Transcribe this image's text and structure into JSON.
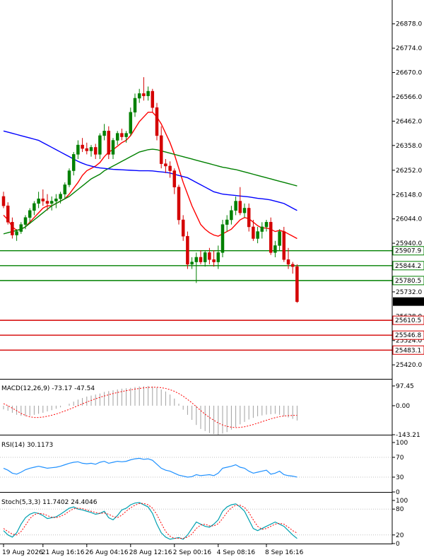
{
  "chart_data": {
    "type": "candlestick",
    "price_axis": {
      "ticks": [
        "26878.0",
        "26774.0",
        "26670.0",
        "26566.0",
        "26462.0",
        "26358.0",
        "26252.0",
        "26148.0",
        "26044.0",
        "25940.0",
        "25836.0",
        "25732.0",
        "25628.0",
        "25524.0",
        "25420.0"
      ],
      "min": 25360,
      "max": 26980
    },
    "level_lines": {
      "green": [
        {
          "label": "25907.9",
          "value": 25907.9
        },
        {
          "label": "25844.2",
          "value": 25844.2
        },
        {
          "label": "25780.5",
          "value": 25780.5
        }
      ],
      "red": [
        {
          "label": "25610.5",
          "value": 25610.5
        },
        {
          "label": "25546.8",
          "value": 25546.8
        },
        {
          "label": "25483.1",
          "value": 25483.1
        }
      ],
      "colors": {
        "green": "#008000",
        "red": "#d40000"
      }
    },
    "current_price": {
      "label": "25690.5",
      "value": 25690.5
    },
    "candles": [
      [
        26140,
        26160,
        26090,
        26100
      ],
      [
        26100,
        26115,
        26020,
        26030
      ],
      [
        26030,
        26050,
        25960,
        25975
      ],
      [
        25975,
        26000,
        25950,
        25990
      ],
      [
        25990,
        26030,
        25980,
        26020
      ],
      [
        26020,
        26060,
        26000,
        26050
      ],
      [
        26050,
        26090,
        26030,
        26080
      ],
      [
        26080,
        26120,
        26060,
        26110
      ],
      [
        26110,
        26160,
        26090,
        26130
      ],
      [
        26130,
        26170,
        26100,
        26120
      ],
      [
        26120,
        26150,
        26080,
        26110
      ],
      [
        26110,
        26140,
        26080,
        26120
      ],
      [
        26120,
        26150,
        26090,
        26130
      ],
      [
        26130,
        26160,
        26110,
        26150
      ],
      [
        26150,
        26200,
        26130,
        26190
      ],
      [
        26190,
        26260,
        26180,
        26250
      ],
      [
        26250,
        26330,
        26230,
        26320
      ],
      [
        26320,
        26380,
        26300,
        26360
      ],
      [
        26360,
        26390,
        26330,
        26345
      ],
      [
        26345,
        26370,
        26320,
        26335
      ],
      [
        26335,
        26360,
        26310,
        26350
      ],
      [
        26350,
        26365,
        26300,
        26320
      ],
      [
        26320,
        26410,
        26300,
        26400
      ],
      [
        26400,
        26450,
        26380,
        26420
      ],
      [
        26420,
        26440,
        26300,
        26320
      ],
      [
        26320,
        26390,
        26300,
        26380
      ],
      [
        26380,
        26420,
        26360,
        26410
      ],
      [
        26410,
        26430,
        26380,
        26395
      ],
      [
        26395,
        26420,
        26370,
        26410
      ],
      [
        26410,
        26520,
        26400,
        26500
      ],
      [
        26500,
        26580,
        26480,
        26560
      ],
      [
        26560,
        26600,
        26540,
        26580
      ],
      [
        26580,
        26650,
        26550,
        26570
      ],
      [
        26570,
        26610,
        26550,
        26590
      ],
      [
        26590,
        26600,
        26500,
        26520
      ],
      [
        26520,
        26540,
        26380,
        26400
      ],
      [
        26400,
        26440,
        26260,
        26280
      ],
      [
        26280,
        26300,
        26240,
        26270
      ],
      [
        26270,
        26290,
        26220,
        26250
      ],
      [
        26250,
        26260,
        26150,
        26180
      ],
      [
        26180,
        26190,
        26020,
        26040
      ],
      [
        26040,
        26060,
        25950,
        25970
      ],
      [
        25970,
        25990,
        25830,
        25850
      ],
      [
        25850,
        25880,
        25830,
        25860
      ],
      [
        25860,
        25900,
        25770,
        25880
      ],
      [
        25880,
        25910,
        25850,
        25860
      ],
      [
        25860,
        25910,
        25840,
        25900
      ],
      [
        25900,
        25920,
        25850,
        25870
      ],
      [
        25870,
        25910,
        25840,
        25860
      ],
      [
        25860,
        25930,
        25830,
        25900
      ],
      [
        25900,
        26040,
        25880,
        26020
      ],
      [
        26020,
        26060,
        25990,
        26040
      ],
      [
        26040,
        26100,
        26020,
        26080
      ],
      [
        26080,
        26140,
        26060,
        26120
      ],
      [
        26120,
        26180,
        26060,
        26070
      ],
      [
        26070,
        26110,
        26050,
        26090
      ],
      [
        26090,
        26110,
        25990,
        26010
      ],
      [
        26010,
        26040,
        25950,
        25960
      ],
      [
        25960,
        26010,
        25940,
        25990
      ],
      [
        25990,
        26030,
        25960,
        26010
      ],
      [
        26010,
        26040,
        25990,
        26030
      ],
      [
        26030,
        26050,
        25890,
        25900
      ],
      [
        25900,
        25950,
        25880,
        25930
      ],
      [
        25930,
        26000,
        25910,
        25990
      ],
      [
        25990,
        26010,
        25860,
        25870
      ],
      [
        25870,
        25920,
        25830,
        25850
      ],
      [
        25850,
        25860,
        25810,
        25840
      ],
      [
        25840,
        25850,
        25685,
        25690
      ]
    ],
    "moving_averages": [
      {
        "color": "#ff0000",
        "values": [
          26060,
          26040,
          26010,
          25995,
          26000,
          26010,
          26030,
          26050,
          26070,
          26090,
          26100,
          26100,
          26110,
          26120,
          26130,
          26150,
          26175,
          26200,
          26230,
          26250,
          26260,
          26270,
          26285,
          26310,
          26330,
          26340,
          26355,
          26370,
          26380,
          26400,
          26430,
          26460,
          26480,
          26500,
          26500,
          26480,
          26450,
          26410,
          26370,
          26320,
          26260,
          26200,
          26150,
          26100,
          26060,
          26020,
          26000,
          25985,
          25975,
          25970,
          25980,
          25990,
          26000,
          26020,
          26040,
          26050,
          26045,
          26030,
          26015,
          26005,
          26005,
          26000,
          25990,
          25995,
          25990,
          25980,
          25970,
          25960
        ]
      },
      {
        "color": "#008000",
        "values": [
          25980,
          25985,
          25990,
          25995,
          26000,
          26010,
          26025,
          26040,
          26055,
          26070,
          26085,
          26100,
          26110,
          26120,
          26130,
          26140,
          26155,
          26170,
          26185,
          26200,
          26215,
          26225,
          26235,
          26250,
          26260,
          26270,
          26280,
          26290,
          26300,
          26310,
          26320,
          26330,
          26335,
          26340,
          26342,
          26340,
          26335,
          26330,
          26325,
          26320,
          26315,
          26310,
          26305,
          26300,
          26295,
          26290,
          26285,
          26280,
          26275,
          26270,
          26265,
          26262,
          26258,
          26255,
          26250,
          26245,
          26240,
          26235,
          26230,
          26225,
          26220,
          26215,
          26210,
          26205,
          26200,
          26195,
          26190,
          26185
        ]
      },
      {
        "color": "#0000ff",
        "values": [
          26420,
          26415,
          26410,
          26405,
          26400,
          26395,
          26390,
          26385,
          26380,
          26370,
          26360,
          26350,
          26340,
          26330,
          26320,
          26310,
          26300,
          26290,
          26282,
          26275,
          26270,
          26265,
          26262,
          26260,
          26258,
          26256,
          26255,
          26254,
          26253,
          26252,
          26251,
          26250,
          26250,
          26250,
          26249,
          26247,
          26245,
          26243,
          26240,
          26235,
          26230,
          26225,
          26220,
          26210,
          26200,
          26190,
          26180,
          26170,
          26160,
          26155,
          26150,
          26148,
          26146,
          26144,
          26142,
          26140,
          26138,
          26135,
          26132,
          26130,
          26128,
          26125,
          26120,
          26115,
          26110,
          26100,
          26090,
          26080
        ]
      }
    ],
    "macd": {
      "title": "MACD(12,26,9) -73.17 -47.54",
      "ticks": [
        "97.45",
        "0.00",
        "-143.21"
      ],
      "min": -143.21,
      "max": 97.45,
      "histogram": [
        -18,
        -25,
        -35,
        -45,
        -50,
        -52,
        -50,
        -45,
        -40,
        -35,
        -28,
        -22,
        -15,
        -8,
        0,
        10,
        20,
        30,
        38,
        45,
        50,
        55,
        60,
        68,
        72,
        76,
        80,
        84,
        86,
        88,
        92,
        95,
        96,
        97,
        95,
        90,
        80,
        70,
        55,
        35,
        10,
        -20,
        -45,
        -70,
        -95,
        -115,
        -125,
        -135,
        -140,
        -143,
        -138,
        -130,
        -118,
        -105,
        -92,
        -80,
        -68,
        -60,
        -52,
        -48,
        -44,
        -42,
        -40,
        -45,
        -52,
        -58,
        -65,
        -73
      ],
      "signal": [
        10,
        0,
        -12,
        -25,
        -38,
        -48,
        -55,
        -58,
        -58,
        -56,
        -52,
        -47,
        -41,
        -34,
        -26,
        -18,
        -9,
        0,
        9,
        18,
        26,
        34,
        41,
        48,
        54,
        60,
        65,
        70,
        74,
        78,
        82,
        85,
        88,
        90,
        91,
        91,
        89,
        85,
        79,
        71,
        60,
        47,
        31,
        14,
        -5,
        -24,
        -42,
        -58,
        -72,
        -85,
        -95,
        -102,
        -106,
        -108,
        -107,
        -104,
        -99,
        -93,
        -86,
        -79,
        -72,
        -65,
        -59,
        -54,
        -51,
        -49,
        -48,
        -47.54
      ]
    },
    "rsi": {
      "title": "RSI(14) 30.1173",
      "ticks": [
        "100",
        "70",
        "30",
        "0"
      ],
      "min": 0,
      "max": 100,
      "values": [
        48,
        44,
        38,
        36,
        40,
        45,
        48,
        50,
        52,
        50,
        48,
        49,
        50,
        52,
        55,
        58,
        60,
        61,
        58,
        57,
        58,
        56,
        60,
        62,
        58,
        60,
        62,
        61,
        62,
        65,
        67,
        68,
        66,
        67,
        64,
        56,
        48,
        44,
        42,
        38,
        34,
        32,
        30,
        31,
        35,
        33,
        34,
        35,
        33,
        38,
        48,
        50,
        52,
        55,
        50,
        48,
        42,
        38,
        40,
        42,
        44,
        36,
        38,
        42,
        35,
        33,
        32,
        30.1
      ]
    },
    "stoch": {
      "title": "Stoch(5,3,3) 11.7402 24.4046",
      "ticks": [
        "100",
        "80",
        "20",
        "0"
      ],
      "min": 0,
      "max": 100,
      "k": [
        30,
        20,
        15,
        25,
        45,
        60,
        68,
        72,
        70,
        65,
        58,
        60,
        62,
        68,
        75,
        82,
        85,
        80,
        78,
        75,
        72,
        68,
        70,
        75,
        60,
        55,
        65,
        78,
        82,
        90,
        94,
        95,
        90,
        85,
        70,
        45,
        25,
        15,
        10,
        12,
        14,
        10,
        20,
        35,
        50,
        45,
        40,
        38,
        45,
        55,
        75,
        85,
        90,
        92,
        85,
        75,
        55,
        35,
        30,
        35,
        40,
        45,
        50,
        45,
        40,
        30,
        20,
        11.74
      ],
      "d": [
        35,
        28,
        22,
        20,
        28,
        42,
        58,
        67,
        70,
        69,
        65,
        61,
        60,
        63,
        68,
        75,
        81,
        82,
        81,
        78,
        75,
        72,
        70,
        71,
        68,
        63,
        60,
        66,
        75,
        83,
        89,
        93,
        93,
        90,
        82,
        67,
        47,
        28,
        17,
        12,
        12,
        12,
        15,
        22,
        35,
        43,
        45,
        41,
        41,
        46,
        58,
        72,
        83,
        89,
        89,
        84,
        72,
        55,
        40,
        33,
        35,
        40,
        45,
        47,
        45,
        38,
        30,
        24.4
      ]
    },
    "time_axis": {
      "labels": [
        "19 Aug 2026",
        "21 Aug 16:16",
        "26 Aug 04:16",
        "28 Aug 12:16",
        "2 Sep 00:16",
        "4 Sep 08:16",
        "8 Sep 16:16"
      ],
      "label_candle_index": [
        0,
        9,
        19,
        29,
        39,
        49,
        60
      ]
    },
    "colors": {
      "bull": "#008000",
      "bear": "#d40000",
      "bg": "#ffffff",
      "axis": "#000000",
      "rsi_line": "#1e90ff",
      "stoch_k": "#00a0b0",
      "stoch_d": "#ff0000",
      "macd_hist": "#a0a0a0",
      "macd_signal": "#ff0000"
    }
  }
}
